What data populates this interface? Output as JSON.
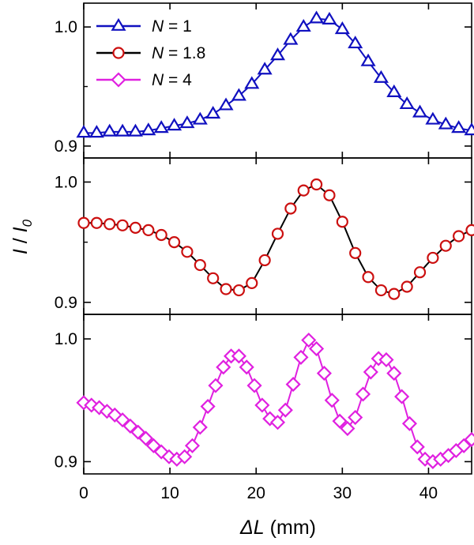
{
  "chart_data": [
    {
      "type": "line",
      "panel": "top",
      "x": [
        0,
        1.5,
        3,
        4.5,
        6,
        7.5,
        9,
        10.5,
        12,
        13.5,
        15,
        16.5,
        18,
        19.5,
        21,
        22.5,
        24,
        25.5,
        27,
        28.5,
        30,
        31.5,
        33,
        34.5,
        36,
        37.5,
        39,
        40.5,
        42,
        43.5,
        45
      ],
      "series": [
        {
          "name": "N = 1",
          "marker": "triangle-up",
          "color": "#1010c0",
          "values": [
            0.911,
            0.911,
            0.912,
            0.912,
            0.912,
            0.913,
            0.915,
            0.917,
            0.919,
            0.922,
            0.927,
            0.934,
            0.942,
            0.952,
            0.964,
            0.976,
            0.989,
            1.0,
            1.007,
            1.006,
            0.998,
            0.986,
            0.971,
            0.957,
            0.945,
            0.935,
            0.928,
            0.922,
            0.918,
            0.915,
            0.913
          ]
        }
      ],
      "ylim": [
        0.89,
        1.02
      ],
      "yticks": [
        0.9,
        1.0
      ],
      "ytick_labels": [
        "0.9",
        "1.0"
      ]
    },
    {
      "type": "line",
      "panel": "middle",
      "x": [
        0,
        1.5,
        3,
        4.5,
        6,
        7.5,
        9,
        10.5,
        12,
        13.5,
        15,
        16.5,
        18,
        19.5,
        21,
        22.5,
        24,
        25.5,
        27,
        28.5,
        30,
        31.5,
        33,
        34.5,
        36,
        37.5,
        39,
        40.5,
        42,
        43.5,
        45
      ],
      "series": [
        {
          "name": "N = 1.8",
          "marker": "circle",
          "color": "#cc1010",
          "line_color": "#000000",
          "values": [
            0.966,
            0.966,
            0.965,
            0.964,
            0.962,
            0.96,
            0.956,
            0.95,
            0.942,
            0.931,
            0.92,
            0.911,
            0.91,
            0.916,
            0.935,
            0.957,
            0.978,
            0.993,
            0.998,
            0.989,
            0.967,
            0.941,
            0.921,
            0.91,
            0.907,
            0.913,
            0.925,
            0.937,
            0.947,
            0.955,
            0.96
          ]
        }
      ],
      "ylim": [
        0.89,
        1.02
      ],
      "yticks": [
        0.9,
        1.0
      ],
      "ytick_labels": [
        "0.9",
        "1.0"
      ]
    },
    {
      "type": "line",
      "panel": "bottom",
      "x": [
        0,
        0.9,
        1.8,
        2.7,
        3.6,
        4.5,
        5.4,
        6.3,
        7.2,
        8.1,
        9,
        9.9,
        10.8,
        11.7,
        12.6,
        13.5,
        14.4,
        15.3,
        16.2,
        17.1,
        18,
        18.9,
        19.8,
        20.7,
        21.6,
        22.5,
        23.4,
        24.3,
        25.2,
        26.1,
        27,
        27.9,
        28.8,
        29.7,
        30.6,
        31.5,
        32.4,
        33.3,
        34.2,
        35.1,
        36,
        36.9,
        37.8,
        38.7,
        39.6,
        40.5,
        41.4,
        42.3,
        43.2,
        44.1,
        45
      ],
      "series": [
        {
          "name": "N = 4",
          "marker": "diamond",
          "color": "#e020e0",
          "values": [
            0.948,
            0.946,
            0.944,
            0.941,
            0.938,
            0.934,
            0.929,
            0.924,
            0.919,
            0.913,
            0.908,
            0.904,
            0.902,
            0.904,
            0.913,
            0.928,
            0.945,
            0.962,
            0.977,
            0.986,
            0.986,
            0.977,
            0.962,
            0.946,
            0.935,
            0.932,
            0.942,
            0.963,
            0.985,
            0.999,
            0.992,
            0.972,
            0.95,
            0.933,
            0.927,
            0.936,
            0.955,
            0.973,
            0.984,
            0.983,
            0.972,
            0.953,
            0.931,
            0.912,
            0.902,
            0.9,
            0.902,
            0.905,
            0.909,
            0.913,
            0.918
          ]
        }
      ],
      "ylim": [
        0.89,
        1.02
      ],
      "yticks": [
        0.9,
        1.0
      ],
      "ytick_labels": [
        "0.9",
        "1.0"
      ]
    }
  ],
  "axes": {
    "xlim": [
      0,
      45
    ],
    "xticks": [
      0,
      10,
      20,
      30,
      40
    ],
    "xtick_labels": [
      "0",
      "10",
      "20",
      "30",
      "40"
    ],
    "xlabel_prefix": "ΔL",
    "xlabel_suffix": " (mm)",
    "ylabel_main": "I",
    "ylabel_sep": " / ",
    "ylabel_base": "I",
    "ylabel_sub": "0"
  },
  "legend": {
    "placement": "top-left",
    "entries": [
      {
        "prefix": "N",
        "suffix": " = 1"
      },
      {
        "prefix": "N",
        "suffix": " = 1.8"
      },
      {
        "prefix": "N",
        "suffix": " = 4"
      }
    ]
  }
}
